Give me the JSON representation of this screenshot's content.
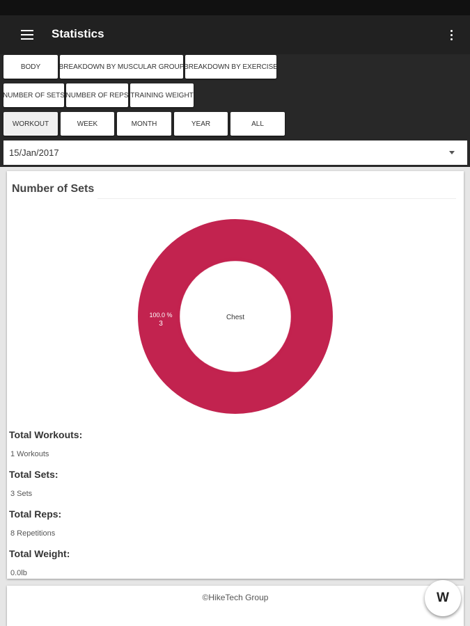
{
  "app_bar": {
    "title": "Statistics",
    "menu_icon": "hamburger-menu-icon",
    "overflow_icon": "more-vert-icon"
  },
  "filters": {
    "row1": [
      "BODY",
      "BREAKDOWN BY MUSCULAR GROUP",
      "BREAKDOWN BY EXERCISE"
    ],
    "row2": [
      "NUMBER OF SETS",
      "NUMBER OF REPS",
      "TRAINING WEIGHT"
    ],
    "row3": [
      "WORKOUT",
      "WEEK",
      "MONTH",
      "YEAR",
      "ALL"
    ]
  },
  "date_select": {
    "value": "15/Jan/2017",
    "icon": "dropdown-arrow-icon"
  },
  "card": {
    "title": "Number of Sets",
    "stats": [
      {
        "label": "Total Workouts:",
        "value": "1 Workouts"
      },
      {
        "label": "Total Sets:",
        "value": "3 Sets"
      },
      {
        "label": "Total Reps:",
        "value": "8 Repetitions"
      },
      {
        "label": "Total Weight:",
        "value": "0.0lb"
      }
    ]
  },
  "chart_data": {
    "type": "pie",
    "categories": [
      "Chest"
    ],
    "values": [
      3
    ],
    "slice_labels": [
      {
        "percent": "100.0 %",
        "value": "3"
      }
    ],
    "center_text": "Chest",
    "colors": [
      "#c2234f"
    ]
  },
  "footer": {
    "copyright": "©HikeTech Group",
    "fab_label": "W"
  },
  "colors": {
    "app_bar": "#212121",
    "filter_area": "#282828",
    "accent": "#c2234f"
  }
}
